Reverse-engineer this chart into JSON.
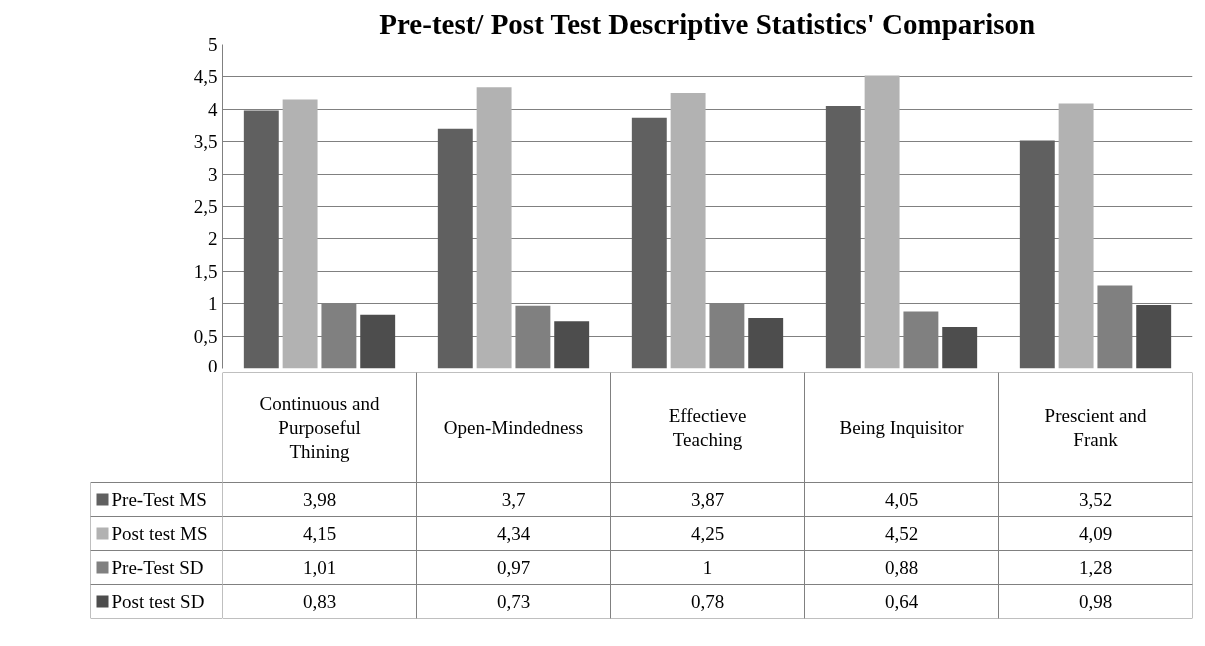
{
  "chart_data": {
    "type": "bar",
    "title": "Pre-test/ Post Test Descriptive Statistics' Comparison",
    "categories": [
      "Continuous and Purposeful Thining",
      "Open-Mindedness",
      "Effectieve Teaching",
      "Being Inquisitor",
      "Prescient and Frank"
    ],
    "series": [
      {
        "name": "Pre-Test MS",
        "color": "#606060",
        "values": [
          3.98,
          3.7,
          3.87,
          4.05,
          3.52
        ],
        "value_labels": [
          "3,98",
          "3,7",
          "3,87",
          "4,05",
          "3,52"
        ]
      },
      {
        "name": "Post test MS",
        "color": "#b2b2b2",
        "values": [
          4.15,
          4.34,
          4.25,
          4.52,
          4.09
        ],
        "value_labels": [
          "4,15",
          "4,34",
          "4,25",
          "4,52",
          "4,09"
        ]
      },
      {
        "name": "Pre-Test SD",
        "color": "#808080",
        "values": [
          1.01,
          0.97,
          1,
          0.88,
          1.28
        ],
        "value_labels": [
          "1,01",
          "0,97",
          "1",
          "0,88",
          "1,28"
        ]
      },
      {
        "name": "Post test SD",
        "color": "#4d4d4d",
        "values": [
          0.83,
          0.73,
          0.78,
          0.64,
          0.98
        ],
        "value_labels": [
          "0,83",
          "0,73",
          "0,78",
          "0,64",
          "0,98"
        ]
      }
    ],
    "ylim": [
      0,
      5
    ],
    "yticks": [
      0,
      {
        "value": 0.5,
        "label": "0,5"
      },
      1,
      {
        "value": 1.5,
        "label": "1,5"
      },
      2,
      {
        "value": 2.5,
        "label": "2,5"
      },
      3,
      {
        "value": 3.5,
        "label": "3,5"
      },
      4,
      {
        "value": 4.5,
        "label": "4,5"
      },
      5
    ],
    "grid": "y",
    "legend": "bottom left"
  }
}
